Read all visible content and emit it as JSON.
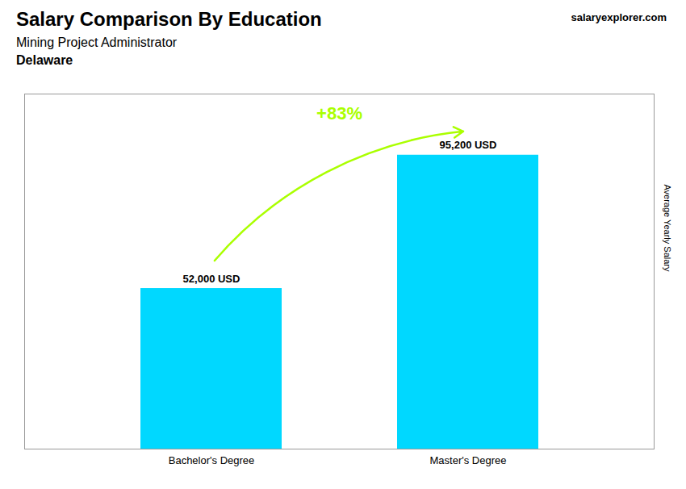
{
  "chart_data": {
    "type": "bar",
    "title": "Salary Comparison By Education",
    "subtitle": "Mining Project Administrator",
    "ylabel": "Average Yearly Salary",
    "categories": [
      "Bachelor's Degree",
      "Master's Degree"
    ],
    "values": [
      52000,
      95200
    ],
    "value_labels": [
      "52,000 USD",
      "95,200 USD"
    ],
    "color": "#00d8ff",
    "ylim": [
      0,
      115000
    ],
    "tick_labels": "x",
    "grid": false,
    "data_labels": true,
    "annotations": [
      {
        "text": "Delaware"
      },
      {
        "text": "salaryexplorer.com"
      },
      {
        "text": "+83%",
        "color": "#aaff00"
      }
    ]
  }
}
